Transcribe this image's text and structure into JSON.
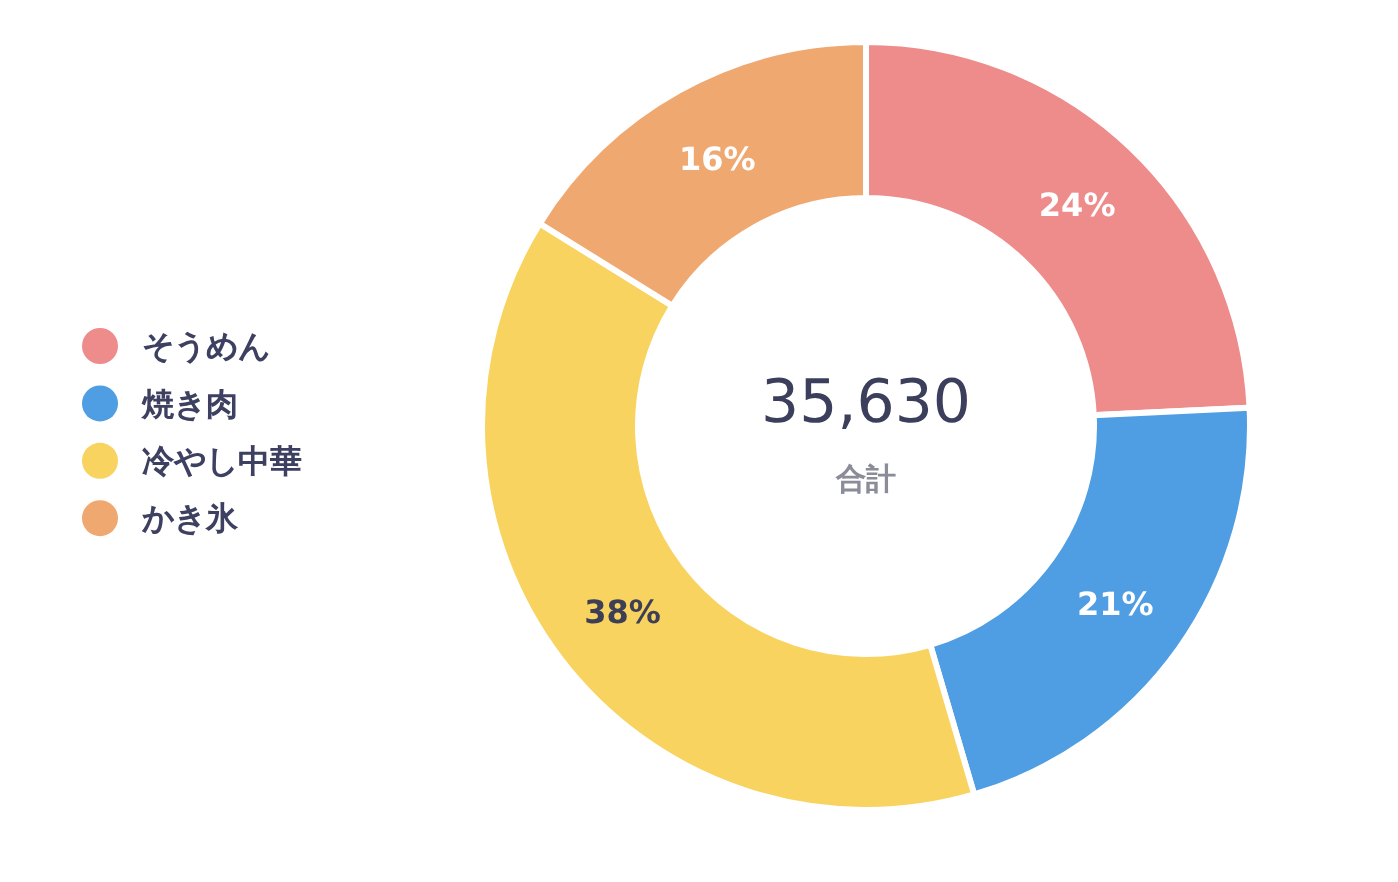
{
  "chart_data": {
    "type": "donut",
    "categories": [
      "そうめん",
      "焼き肉",
      "冷やし中華",
      "かき氷"
    ],
    "values": [
      24,
      21,
      38,
      16
    ],
    "colors": [
      "#ee8b8b",
      "#4f9de2",
      "#f8d35f",
      "#f0a871"
    ],
    "value_labels": [
      "24%",
      "21%",
      "38%",
      "16%"
    ],
    "annotations": [
      "35,630",
      "合計"
    ],
    "legend": "left"
  }
}
